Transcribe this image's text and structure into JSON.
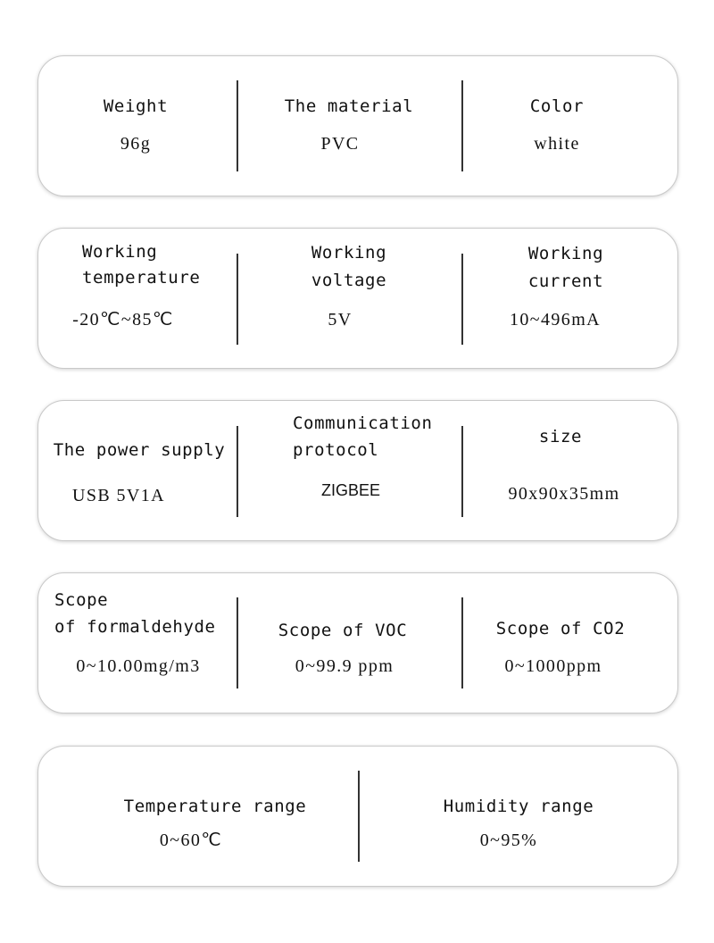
{
  "cards": [
    {
      "cols": [
        {
          "label": "Weight",
          "value": "96g"
        },
        {
          "label": "The material",
          "value": "PVC"
        },
        {
          "label": "Color",
          "value": "white"
        }
      ]
    },
    {
      "cols": [
        {
          "label_lines": [
            "Working",
            "temperature"
          ],
          "value": "-20℃~85℃"
        },
        {
          "label_lines": [
            "Working",
            "voltage"
          ],
          "value": "5V"
        },
        {
          "label_lines": [
            "Working",
            "current"
          ],
          "value": "10~496mA"
        }
      ]
    },
    {
      "cols": [
        {
          "label": "The power supply",
          "value": "USB 5V1A"
        },
        {
          "label_lines": [
            "Communication",
            "protocol"
          ],
          "value": "ZIGBEE"
        },
        {
          "label": "size",
          "value": "90x90x35mm"
        }
      ]
    },
    {
      "cols": [
        {
          "label_lines": [
            "Scope",
            "of formaldehyde"
          ],
          "value": "0~10.00mg/m3"
        },
        {
          "label": "Scope of VOC",
          "value": "0~99.9 ppm"
        },
        {
          "label": "Scope of CO2",
          "value": "0~1000ppm"
        }
      ]
    },
    {
      "cols": [
        {
          "label": "Temperature range",
          "value": "0~60℃"
        },
        {
          "label": "Humidity range",
          "value": "0~95%"
        }
      ]
    }
  ]
}
